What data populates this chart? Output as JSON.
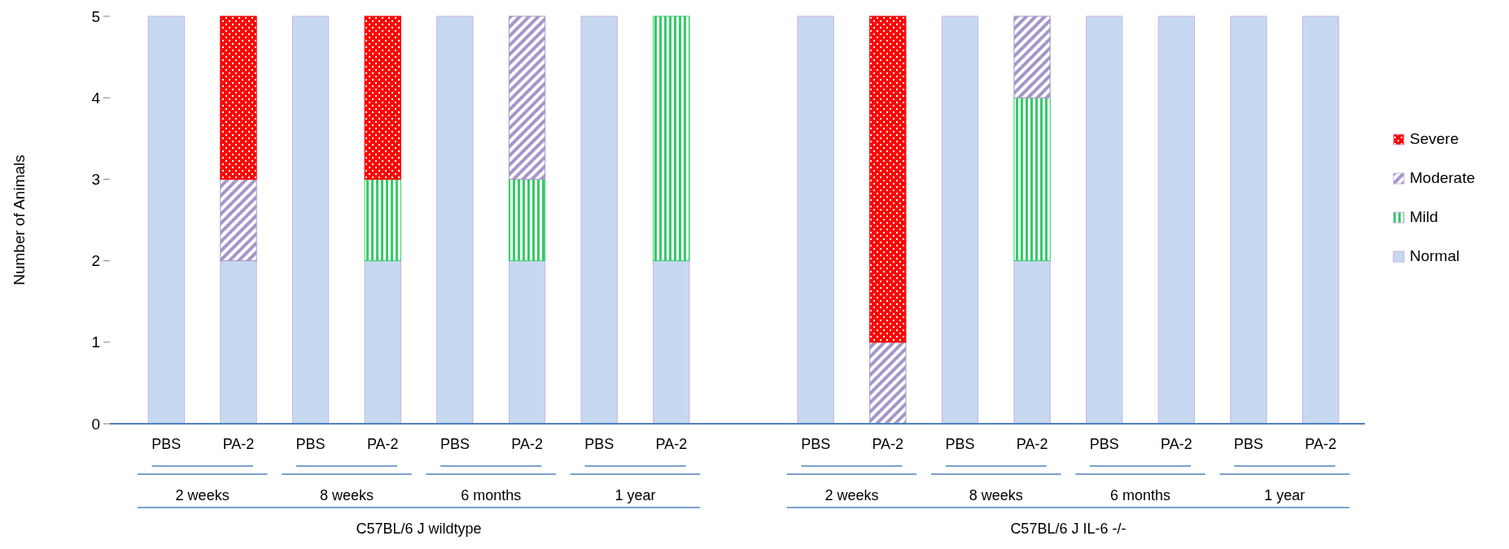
{
  "chart_data": {
    "type": "bar",
    "stacked": true,
    "ylabel": "Number of Animals",
    "categories": [
      "PBS",
      "PA-2",
      "PBS",
      "PA-2",
      "PBS",
      "PA-2",
      "PBS",
      "PA-2",
      null,
      "PBS",
      "PA-2",
      "PBS",
      "PA-2",
      "PBS",
      "PA-2",
      "PBS",
      "PA-2"
    ],
    "series": [
      {
        "name": "Normal",
        "color": "#c6d9f1",
        "values": [
          5,
          2,
          5,
          2,
          5,
          2,
          5,
          2,
          null,
          5,
          0,
          5,
          2,
          5,
          5,
          5,
          5
        ]
      },
      {
        "name": "Mild",
        "color": "#33cc66",
        "values": [
          0,
          0,
          0,
          1,
          0,
          1,
          0,
          3,
          null,
          0,
          0,
          0,
          2,
          0,
          0,
          0,
          0
        ]
      },
      {
        "name": "Moderate",
        "color": "#a596c8",
        "values": [
          0,
          1,
          0,
          0,
          0,
          2,
          0,
          0,
          null,
          0,
          1,
          0,
          1,
          0,
          0,
          0,
          0
        ]
      },
      {
        "name": "Severe",
        "color": "#ff0000",
        "values": [
          0,
          2,
          0,
          2,
          0,
          0,
          0,
          0,
          null,
          0,
          4,
          0,
          0,
          0,
          0,
          0,
          0
        ]
      }
    ],
    "ylim": [
      0,
      5
    ],
    "yticks": [
      0,
      1,
      2,
      3,
      4,
      5
    ],
    "legend": "right",
    "annotations": [
      "2 weeks",
      "8 weeks",
      "6 months",
      "1 year",
      "2 weeks",
      "8 weeks",
      "6 months",
      "1 year",
      "C57BL/6 J wildtype",
      "C57BL/6 J IL-6 -/-"
    ]
  }
}
